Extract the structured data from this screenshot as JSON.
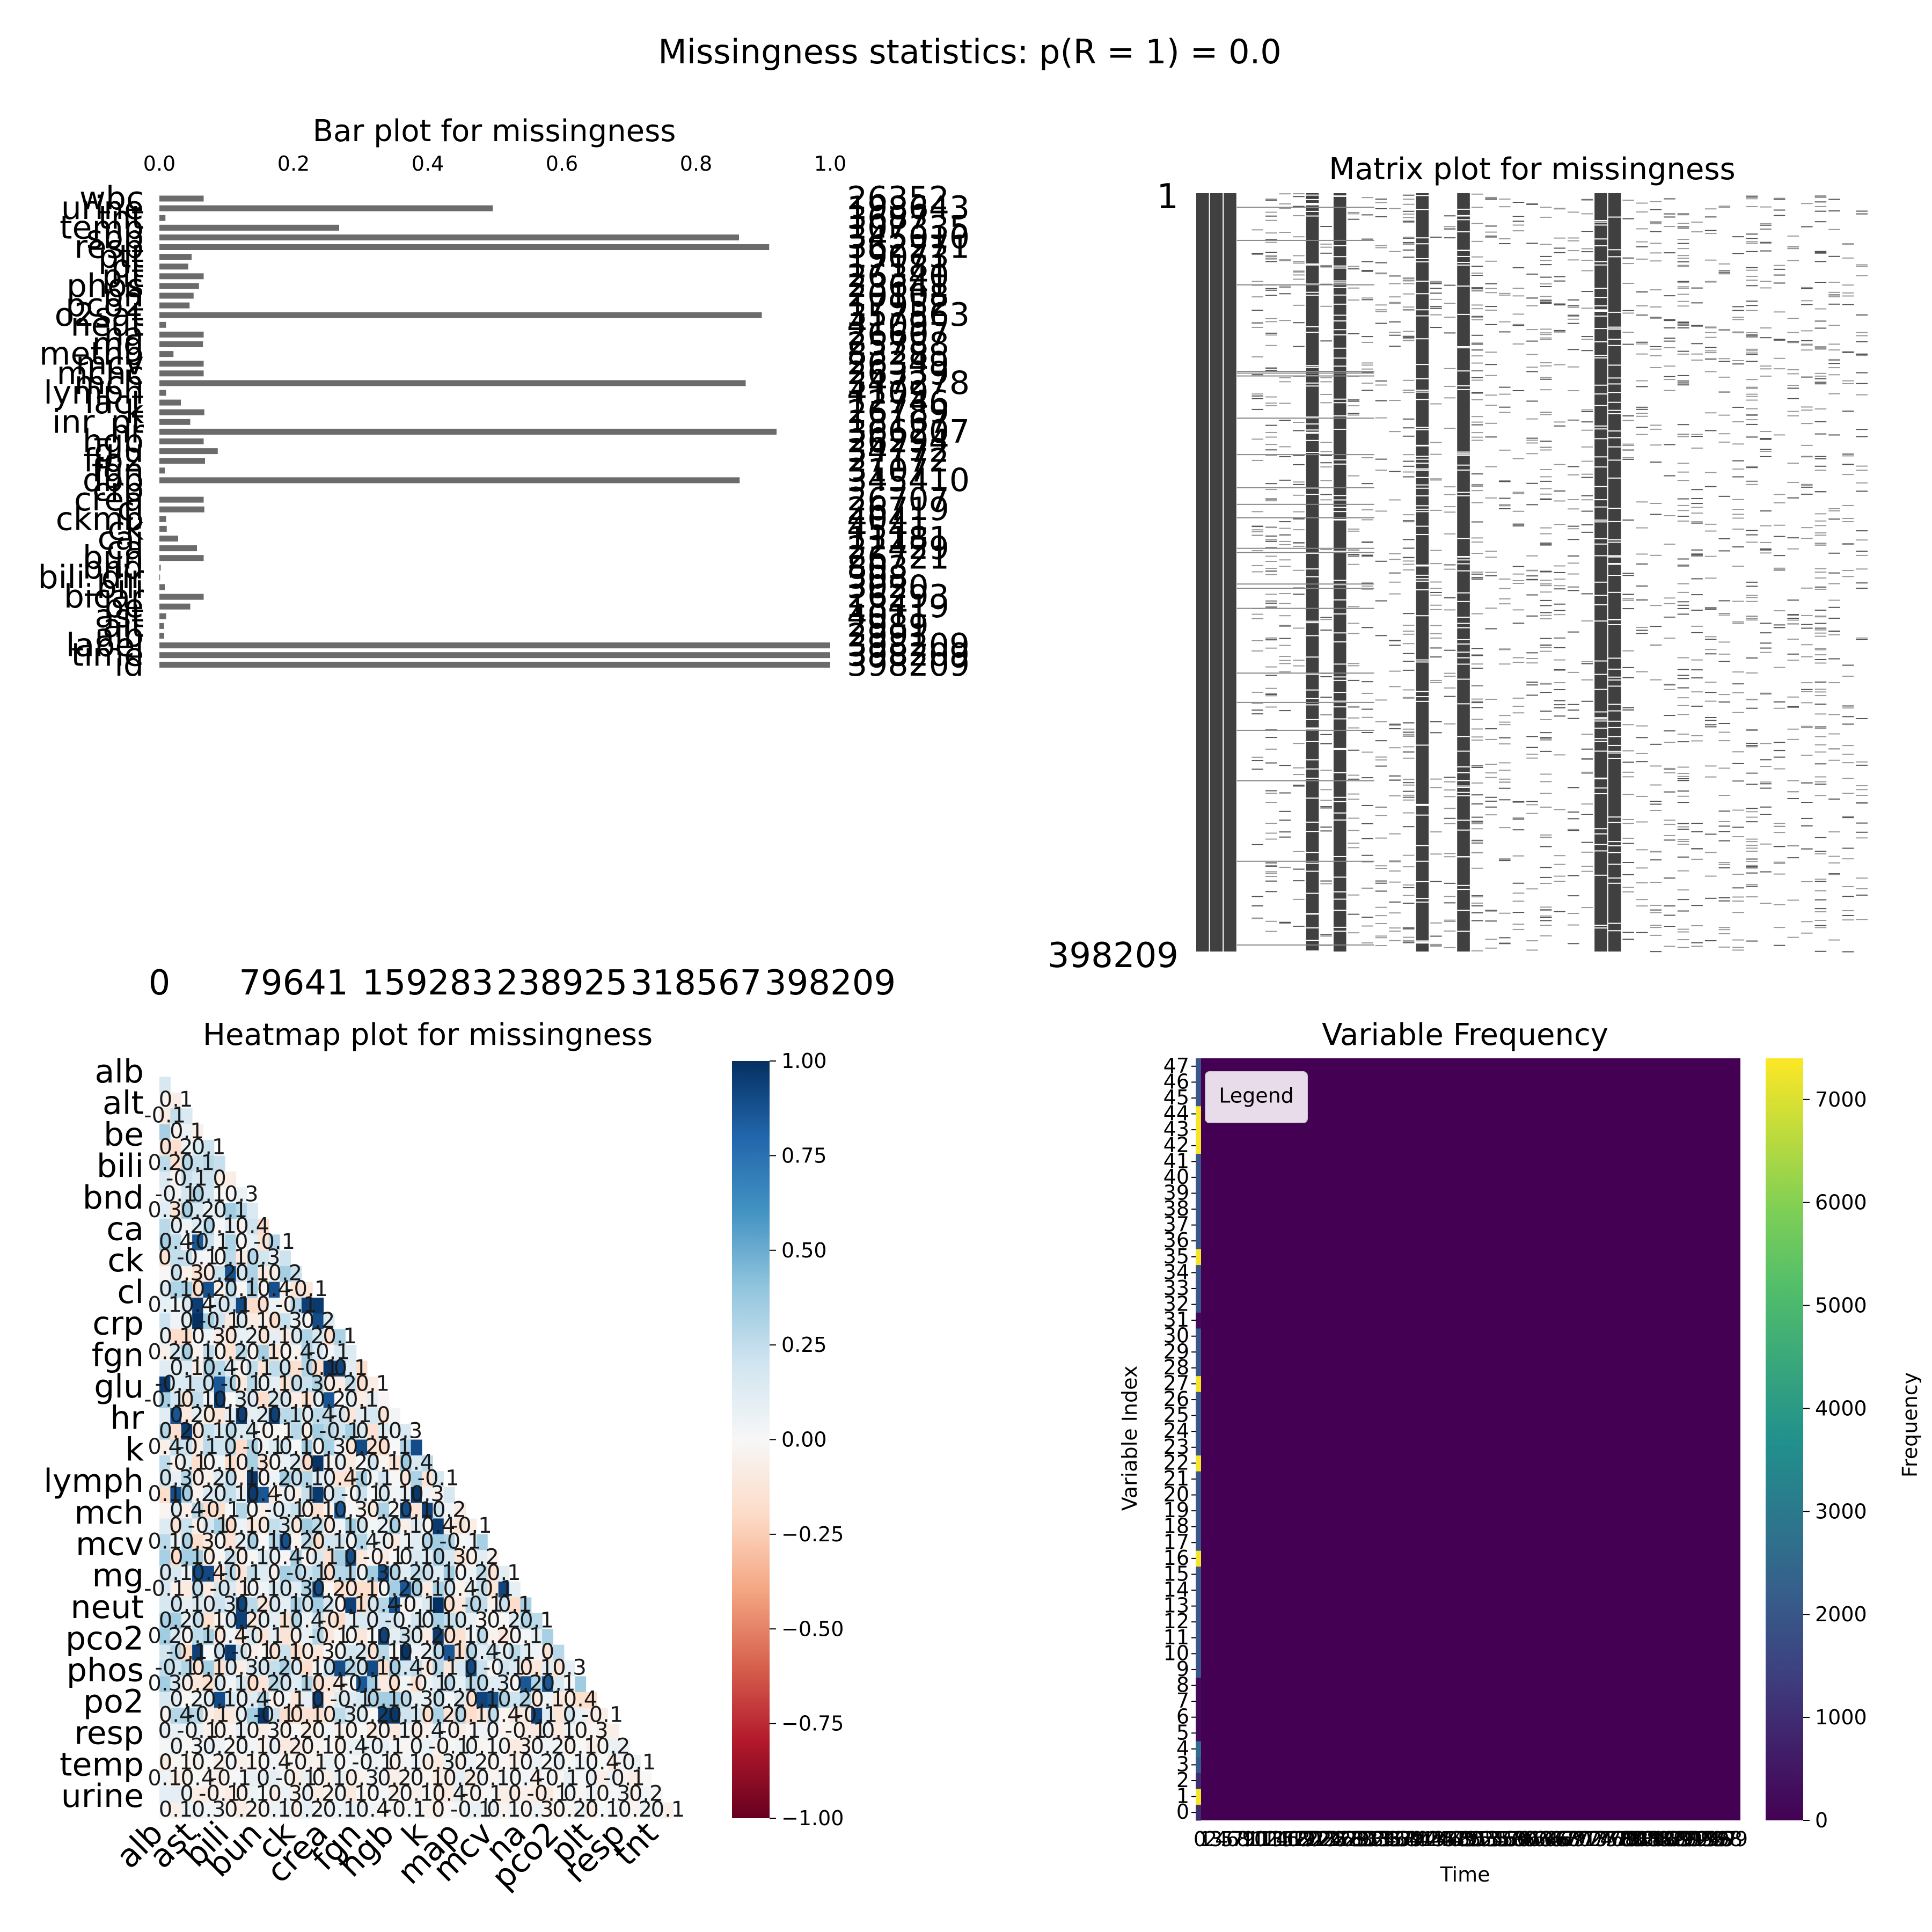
{
  "suptitle": "Missingness statistics: p(R = 1) = 0.0",
  "bar": {
    "title": "Bar plot for missingness",
    "top_ticks": [
      "0.0",
      "0.2",
      "0.4",
      "0.6",
      "0.8",
      "1.0"
    ],
    "bottom_ticks": [
      "0",
      "79641",
      "159283",
      "238925",
      "318567",
      "398209"
    ],
    "total": 398209
  },
  "matrix": {
    "title": "Matrix plot for missingness",
    "y_top": "1",
    "y_bottom": "398209"
  },
  "heatmap": {
    "title": "Heatmap plot for missingness",
    "y_labels": [
      "alb",
      "alt",
      "be",
      "bili",
      "bnd",
      "ca",
      "ck",
      "cl",
      "crp",
      "fgn",
      "glu",
      "hr",
      "k",
      "lymph",
      "mch",
      "mcv",
      "mg",
      "neut",
      "pco2",
      "phos",
      "po2",
      "resp",
      "temp",
      "urine"
    ],
    "x_labels": [
      "alb",
      "ast",
      "bili",
      "bun",
      "ck",
      "crea",
      "fgn",
      "hgb",
      "k",
      "map",
      "mcv",
      "na",
      "pco2",
      "plt",
      "resp",
      "tnt"
    ],
    "colorbar_ticks": [
      "1.00",
      "0.75",
      "0.50",
      "0.25",
      "0.00",
      "−0.25",
      "−0.50",
      "−0.75",
      "−1.00"
    ],
    "annot_values": [
      "0.1",
      "-0.1",
      "0.2",
      "0.3",
      "0",
      "0.1",
      "0.2",
      "-0.1",
      "0.4",
      "0.1"
    ]
  },
  "freq": {
    "title": "Variable Frequency",
    "xlabel": "Time",
    "ylabel": "Variable Index",
    "cbar_label": "Frequency",
    "cbar_ticks": [
      "7000",
      "6000",
      "5000",
      "4000",
      "3000",
      "2000",
      "1000",
      "0"
    ],
    "legend": "Legend",
    "y_ticks": [
      "0",
      "1",
      "2",
      "3",
      "4",
      "5",
      "6",
      "7",
      "8",
      "9",
      "10",
      "11",
      "12",
      "13",
      "14",
      "15",
      "16",
      "17",
      "18",
      "19",
      "20",
      "21",
      "22",
      "23",
      "24",
      "25",
      "26",
      "27",
      "28",
      "29",
      "30",
      "31",
      "32",
      "33",
      "34",
      "35",
      "36",
      "37",
      "38",
      "39",
      "40",
      "41",
      "42",
      "43",
      "44",
      "45",
      "46",
      "47"
    ]
  },
  "chart_data": [
    {
      "type": "bar",
      "title": "Bar plot for missingness",
      "orientation": "horizontal",
      "xlim": [
        0,
        1
      ],
      "categories": [
        "wbc",
        "urine",
        "tnt",
        "temp",
        "sbp",
        "resp",
        "ptt",
        "pt",
        "plt",
        "phos",
        "ph",
        "pco2",
        "o2sat",
        "neut",
        "na",
        "mg",
        "methb",
        "mcv",
        "mchc",
        "mch",
        "lymph",
        "lact",
        "k",
        "inr_pt",
        "hr",
        "hgb",
        "glu",
        "fio2",
        "fgn",
        "dbp",
        "crp",
        "crea",
        "cl",
        "ckmb",
        "ck",
        "cai",
        "ca",
        "bun",
        "bnd",
        "bili_dir",
        "bili",
        "bicar",
        "be",
        "ast",
        "alt",
        "alb",
        "label",
        "time",
        "id"
      ],
      "values": [
        0.066,
        0.497,
        0.009,
        0.268,
        0.864,
        0.909,
        0.048,
        0.043,
        0.066,
        0.059,
        0.051,
        0.045,
        0.898,
        0.01,
        0.066,
        0.065,
        0.021,
        0.066,
        0.066,
        0.874,
        0.01,
        0.032,
        0.067,
        0.046,
        0.92,
        0.066,
        0.087,
        0.068,
        0.008,
        0.865,
        0.0,
        0.066,
        0.067,
        0.01,
        0.011,
        0.028,
        0.056,
        0.066,
        0.002,
        0.001,
        0.008,
        0.066,
        0.046,
        0.01,
        0.007,
        0.007,
        1.0,
        1.0,
        1.0
      ],
      "count_labels": [
        "26352",
        "198643",
        "3687",
        "107335",
        "345010",
        "362271",
        "19073",
        "17181",
        "26340",
        "23641",
        "20108",
        "17952",
        "357563",
        "4109",
        "26607",
        "25788",
        "8328",
        "26349",
        "26339",
        "347278",
        "4109",
        "12746",
        "26789",
        "18167",
        "366207",
        "26294",
        "34772",
        "27172",
        "3107",
        "345410",
        "",
        "26707",
        "26719",
        "4041",
        "4541",
        "11181",
        "22429",
        "26721",
        "803",
        "308",
        "3020",
        "26293",
        "18419",
        "4011",
        "2989",
        "2991",
        "398209",
        "398209",
        "398209"
      ]
    },
    {
      "type": "heatmap",
      "title": "Matrix plot for missingness",
      "rows": 398209,
      "columns": 49,
      "dense_columns": [
        0,
        1,
        2,
        8,
        10,
        16,
        19,
        29,
        30
      ],
      "colors": {
        "present": "#404040",
        "missing": "#ffffff"
      }
    },
    {
      "type": "heatmap",
      "title": "Heatmap plot for missingness",
      "mask": "lower-triangle",
      "colormap": "RdBu",
      "vmin": -1,
      "vmax": 1
    },
    {
      "type": "heatmap",
      "title": "Variable Frequency",
      "xlabel": "Time",
      "ylabel": "Variable Index",
      "colormap": "viridis",
      "vmin": 0,
      "vmax": 7400,
      "rows": 48,
      "first_column": [
        1000,
        7300,
        1000,
        2100,
        2600,
        200,
        200,
        200,
        200,
        2000,
        2000,
        2000,
        2000,
        2000,
        2000,
        2000,
        7300,
        2000,
        2000,
        2000,
        2000,
        2000,
        7300,
        2000,
        2000,
        2000,
        2000,
        7300,
        2000,
        2000,
        2000,
        200,
        2000,
        2000,
        2000,
        7300,
        2000,
        2000,
        2000,
        2000,
        2000,
        2000,
        7300,
        7300,
        7300,
        2000,
        2000,
        2000
      ],
      "other_columns_value": 0
    }
  ]
}
